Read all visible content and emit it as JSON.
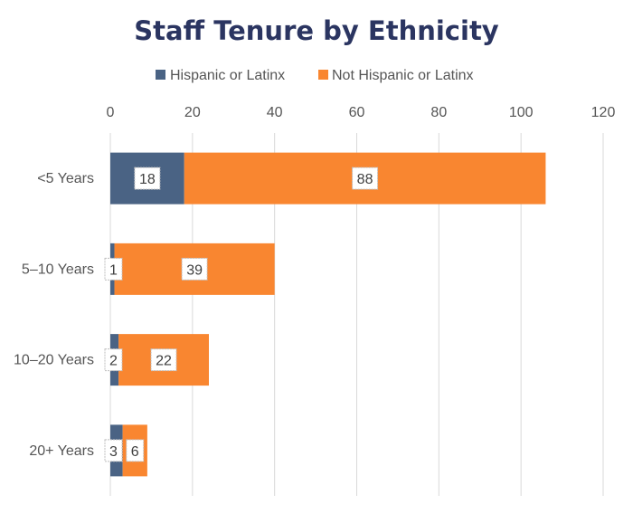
{
  "chart_data": {
    "type": "bar",
    "orientation": "horizontal",
    "stacked": true,
    "title": "Staff Tenure by Ethnicity",
    "xlabel": "",
    "ylabel": "",
    "categories": [
      "<5 Years",
      "5–10 Years",
      "10–20 Years",
      "20+ Years"
    ],
    "series": [
      {
        "name": "Hispanic or Latinx",
        "values": [
          18,
          1,
          2,
          3
        ],
        "color": "#4a6384"
      },
      {
        "name": "Not Hispanic or Latinx",
        "values": [
          88,
          39,
          22,
          6
        ],
        "color": "#f98630"
      }
    ],
    "xlim": [
      0,
      120
    ],
    "xticks": [
      0,
      20,
      40,
      60,
      80,
      100,
      120
    ],
    "grid": true,
    "legend_position": "top",
    "axis_position": "top"
  }
}
